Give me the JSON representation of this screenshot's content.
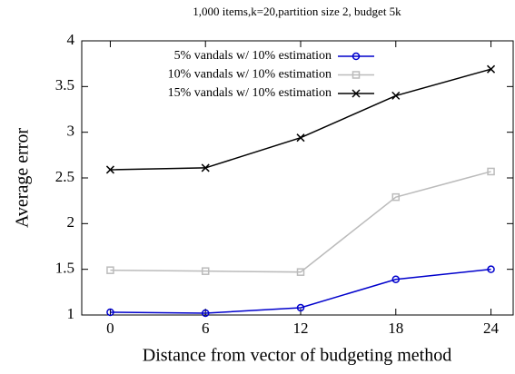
{
  "chart_data": {
    "type": "line",
    "title": "1,000 items,k=20,partition size 2, budget 5k",
    "xlabel": "Distance from vector of budgeting method",
    "ylabel": "Average error",
    "x": [
      0,
      6,
      12,
      18,
      24
    ],
    "series": [
      {
        "name": "5% vandals w/ 10% estimation",
        "color": "#0000cc",
        "marker": "circle",
        "values": [
          1.03,
          1.02,
          1.08,
          1.39,
          1.5
        ]
      },
      {
        "name": "10% vandals w/ 10% estimation",
        "color": "#bbbbbb",
        "marker": "square",
        "values": [
          1.49,
          1.48,
          1.47,
          2.29,
          2.57
        ]
      },
      {
        "name": "15% vandals w/ 10% estimation",
        "color": "#000000",
        "marker": "cross",
        "values": [
          2.59,
          2.61,
          2.94,
          3.4,
          3.69
        ]
      }
    ],
    "xlim": [
      -1.8,
      25.4
    ],
    "xticks": [
      0,
      6,
      12,
      18,
      24
    ],
    "ylim": [
      1,
      4
    ],
    "yticks": [
      1,
      1.5,
      2,
      2.5,
      3,
      3.5,
      4
    ],
    "legend": "upper left"
  }
}
